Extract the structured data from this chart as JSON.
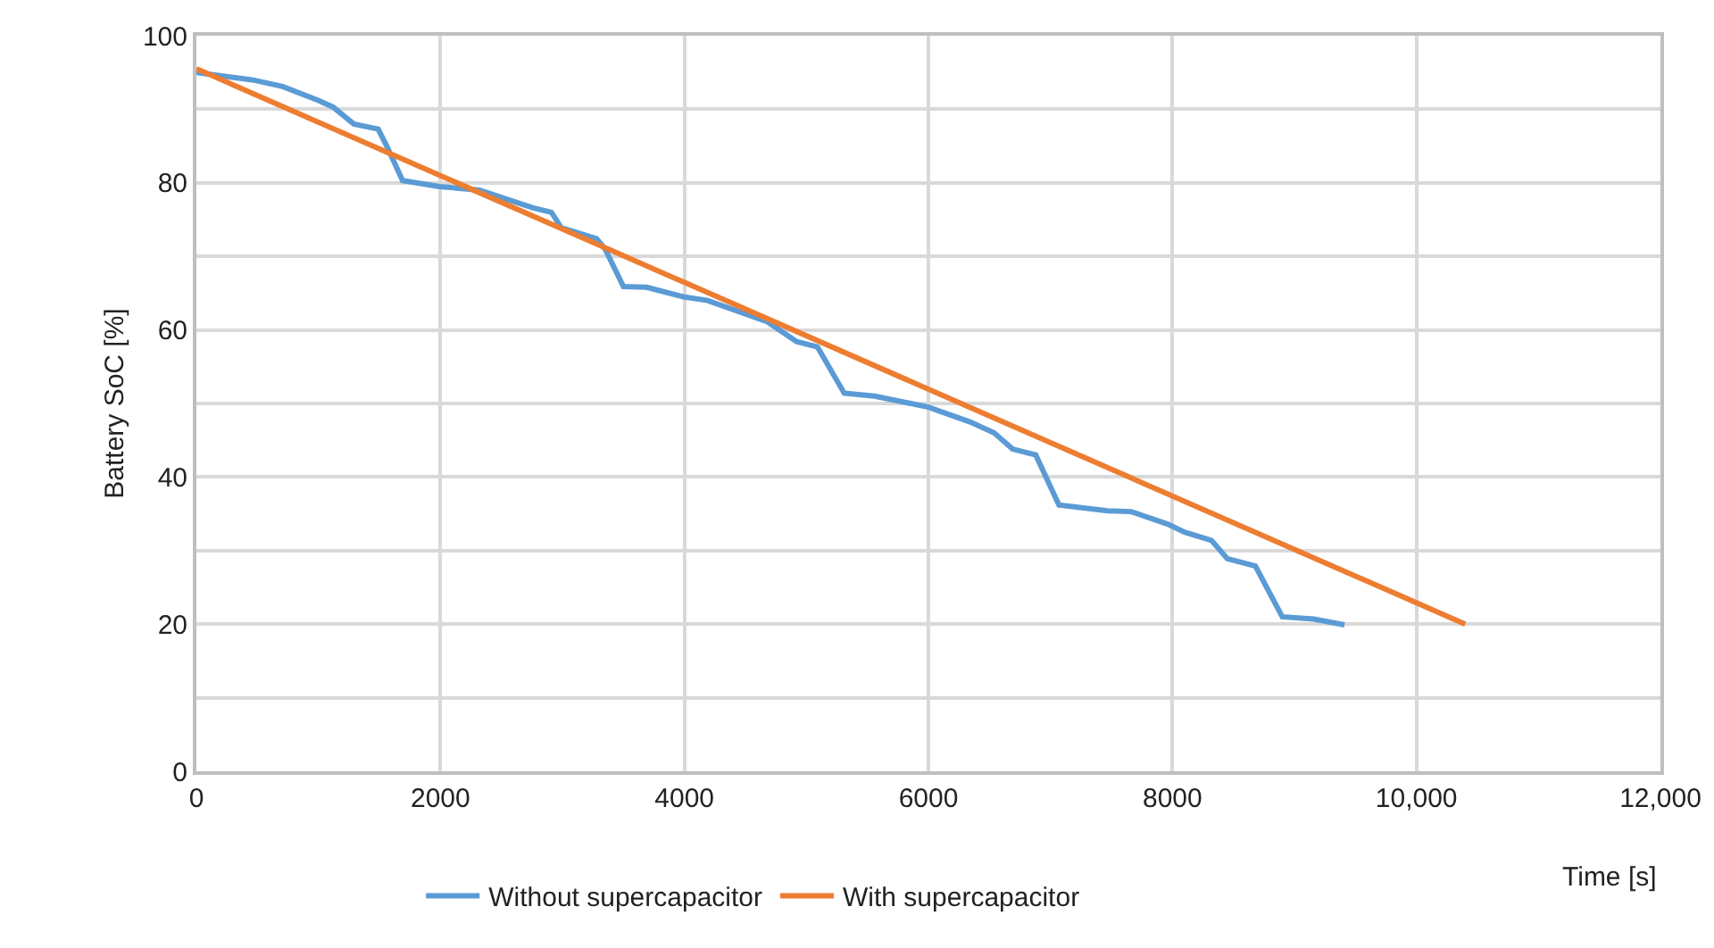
{
  "chart_data": {
    "type": "line",
    "xlabel": "Time [s]",
    "ylabel": "Battery SoC [%]",
    "xlim": [
      0,
      12000
    ],
    "xticks": [
      {
        "value": 0,
        "label": "0"
      },
      {
        "value": 2000,
        "label": "2000"
      },
      {
        "value": 4000,
        "label": "4000"
      },
      {
        "value": 6000,
        "label": "6000"
      },
      {
        "value": 8000,
        "label": "8000"
      },
      {
        "value": 10000,
        "label": "10,000"
      },
      {
        "value": 12000,
        "label": "12,000"
      }
    ],
    "ylim": [
      0,
      100
    ],
    "yticks": [
      0,
      {
        "value": 10,
        "label": null
      },
      20,
      {
        "value": 30,
        "label": null
      },
      40,
      {
        "value": 50,
        "label": null
      },
      60,
      {
        "value": 70,
        "label": null
      },
      80,
      {
        "value": 90,
        "label": null
      },
      100
    ],
    "grid": true,
    "legend": "bottom",
    "marker": "none",
    "line_style": "solid",
    "series": [
      {
        "name": "Without supercapacitor",
        "color": "#5b9bd5",
        "x": [
          0,
          456,
          706,
          1000,
          1120,
          1290,
          1490,
          1560,
          1690,
          1990,
          2320,
          2760,
          2910,
          2990,
          3280,
          3350,
          3500,
          3690,
          3990,
          4190,
          4530,
          4680,
          4920,
          5090,
          5310,
          5560,
          6000,
          6340,
          6540,
          6690,
          6880,
          7070,
          7470,
          7660,
          7960,
          8100,
          8320,
          8450,
          8680,
          8900,
          9160,
          9410
        ],
        "values": [
          95,
          94,
          93.1,
          91.2,
          90.3,
          88,
          87.3,
          85,
          80.3,
          79.5,
          79,
          76.6,
          76,
          73.9,
          72.4,
          71,
          65.9,
          65.8,
          64.5,
          64,
          62,
          61.1,
          58.4,
          57.7,
          51.4,
          51,
          49.5,
          47.5,
          46,
          43.8,
          43,
          36.2,
          35.4,
          35.3,
          33.6,
          32.5,
          31.4,
          28.9,
          27.9,
          21,
          20.7,
          19.9
        ]
      },
      {
        "name": "With supercapacitor",
        "color": "#ed7d31",
        "x": [
          0,
          10400
        ],
        "values": [
          95.5,
          20
        ]
      }
    ]
  }
}
